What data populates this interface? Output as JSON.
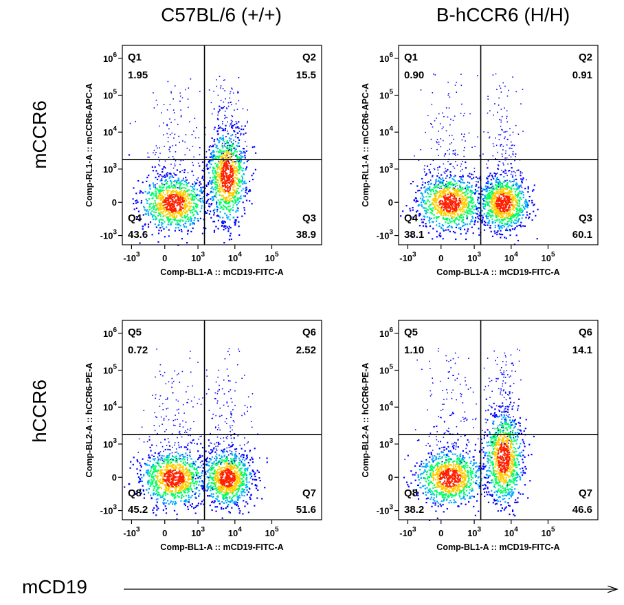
{
  "columns": [
    "C57BL/6 (+/+)",
    "B-hCCR6 (H/H)"
  ],
  "rows": [
    "mCCR6",
    "hCCR6"
  ],
  "bottom_axis_label": "mCD19",
  "colors": {
    "gate_line": "#000000",
    "density_low": "#0000ff",
    "density_mid": "#00ff66",
    "density_high": "#ff2000"
  },
  "chart_data": [
    {
      "type": "scatter",
      "subtype": "flow-cytometry-density",
      "column": "C57BL/6 (+/+)",
      "row": "mCCR6",
      "xlabel": "Comp-BL1-A :: mCD19-FITC-A",
      "ylabel": "Comp-RL1-A :: mCCR6-APC-A",
      "x_scale": "biexponential",
      "y_scale": "biexponential",
      "x_ticks": [
        "-10^3",
        "0",
        "10^3",
        "10^4",
        "10^5"
      ],
      "y_ticks": [
        "-10^3",
        "0",
        "10^3",
        "10^4",
        "10^5",
        "10^6"
      ],
      "gate": {
        "x": 1500,
        "y": 1800
      },
      "quadrants": [
        {
          "name": "Q1",
          "value": "1.95",
          "position": "upper-left"
        },
        {
          "name": "Q2",
          "value": "15.5",
          "position": "upper-right"
        },
        {
          "name": "Q3",
          "value": "38.9",
          "position": "lower-right"
        },
        {
          "name": "Q4",
          "value": "43.6",
          "position": "lower-left"
        }
      ],
      "populations": [
        {
          "x": 250,
          "y": 0,
          "spread": "wide"
        },
        {
          "x": 6000,
          "y": 800,
          "spread": "tall"
        }
      ]
    },
    {
      "type": "scatter",
      "subtype": "flow-cytometry-density",
      "column": "B-hCCR6 (H/H)",
      "row": "mCCR6",
      "xlabel": "Comp-BL1-A :: mCD19-FITC-A",
      "ylabel": "Comp-RL1-A :: mCCR6-APC-A",
      "x_scale": "biexponential",
      "y_scale": "biexponential",
      "x_ticks": [
        "-10^3",
        "0",
        "10^3",
        "10^4",
        "10^5"
      ],
      "y_ticks": [
        "-10^3",
        "0",
        "10^3",
        "10^4",
        "10^5",
        "10^6"
      ],
      "gate": {
        "x": 1500,
        "y": 1800
      },
      "quadrants": [
        {
          "name": "Q1",
          "value": "0.90",
          "position": "upper-left"
        },
        {
          "name": "Q2",
          "value": "0.91",
          "position": "upper-right"
        },
        {
          "name": "Q3",
          "value": "60.1",
          "position": "lower-right"
        },
        {
          "name": "Q4",
          "value": "38.1",
          "position": "lower-left"
        }
      ],
      "populations": [
        {
          "x": 250,
          "y": 0,
          "spread": "wide"
        },
        {
          "x": 6000,
          "y": 0,
          "spread": "round"
        }
      ]
    },
    {
      "type": "scatter",
      "subtype": "flow-cytometry-density",
      "column": "C57BL/6 (+/+)",
      "row": "hCCR6",
      "xlabel": "Comp-BL1-A :: mCD19-FITC-A",
      "ylabel": "Comp-BL2-A :: hCCR6-PE-A",
      "x_scale": "biexponential",
      "y_scale": "biexponential",
      "x_ticks": [
        "-10^3",
        "0",
        "10^3",
        "10^4",
        "10^5"
      ],
      "y_ticks": [
        "-10^3",
        "0",
        "10^3",
        "10^4",
        "10^5",
        "10^6"
      ],
      "gate": {
        "x": 1500,
        "y": 1800
      },
      "quadrants": [
        {
          "name": "Q5",
          "value": "0.72",
          "position": "upper-left"
        },
        {
          "name": "Q6",
          "value": "2.52",
          "position": "upper-right"
        },
        {
          "name": "Q7",
          "value": "51.6",
          "position": "lower-right"
        },
        {
          "name": "Q8",
          "value": "45.2",
          "position": "lower-left"
        }
      ],
      "populations": [
        {
          "x": 250,
          "y": 0,
          "spread": "wide"
        },
        {
          "x": 6000,
          "y": 0,
          "spread": "round"
        }
      ]
    },
    {
      "type": "scatter",
      "subtype": "flow-cytometry-density",
      "column": "B-hCCR6 (H/H)",
      "row": "hCCR6",
      "xlabel": "Comp-BL1-A :: mCD19-FITC-A",
      "ylabel": "Comp-BL2-A :: hCCR6-PE-A",
      "x_scale": "biexponential",
      "y_scale": "biexponential",
      "x_ticks": [
        "-10^3",
        "0",
        "10^3",
        "10^4",
        "10^5"
      ],
      "y_ticks": [
        "-10^3",
        "0",
        "10^3",
        "10^4",
        "10^5",
        "10^6"
      ],
      "gate": {
        "x": 1500,
        "y": 1800
      },
      "quadrants": [
        {
          "name": "Q5",
          "value": "1.10",
          "position": "upper-left"
        },
        {
          "name": "Q6",
          "value": "14.1",
          "position": "upper-right"
        },
        {
          "name": "Q7",
          "value": "46.6",
          "position": "lower-right"
        },
        {
          "name": "Q8",
          "value": "38.2",
          "position": "lower-left"
        }
      ],
      "populations": [
        {
          "x": 250,
          "y": 0,
          "spread": "wide"
        },
        {
          "x": 6000,
          "y": 600,
          "spread": "tall"
        }
      ]
    }
  ]
}
